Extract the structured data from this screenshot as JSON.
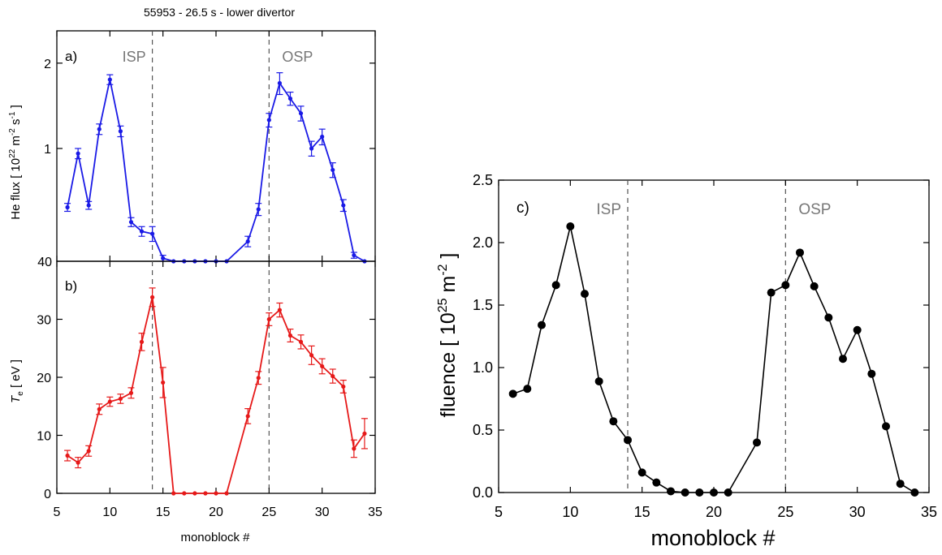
{
  "chart_data": [
    {
      "id": "a",
      "type": "line",
      "title": "55953 - 26.5 s - lower divertor",
      "panel_label": "a)",
      "ylabel_parts": [
        "He flux  [ 10",
        "22",
        " m",
        "-2",
        " s",
        "-1",
        " ]"
      ],
      "yscale": "log",
      "ylim": [
        0.4,
        2.6
      ],
      "yticks": [
        1,
        2
      ],
      "yticklabels": [
        "1",
        "2"
      ],
      "bottom_tick_label": "40",
      "xlim": [
        5,
        35
      ],
      "xticks": [
        5,
        10,
        15,
        20,
        25,
        30,
        35
      ],
      "grid": false,
      "legend": "none",
      "color": "#1a1ae6",
      "marker": "small-dot",
      "vlines": [
        {
          "x": 14,
          "label": "ISP"
        },
        {
          "x": 25,
          "label": "OSP"
        }
      ],
      "series": [
        {
          "x": [
            6,
            7,
            8,
            9,
            10,
            11,
            12,
            13,
            14,
            15,
            16,
            17,
            18,
            19,
            20,
            21,
            23,
            24,
            25,
            26,
            27,
            28,
            29,
            30,
            31,
            32,
            33,
            34
          ],
          "y": [
            0.62,
            0.96,
            0.63,
            1.17,
            1.75,
            1.15,
            0.55,
            0.51,
            0.5,
            0.41,
            0.4,
            0.4,
            0.4,
            0.4,
            0.4,
            0.4,
            0.47,
            0.61,
            1.26,
            1.7,
            1.5,
            1.33,
            1.0,
            1.1,
            0.84,
            0.63,
            0.42,
            0.4
          ],
          "err": [
            0.02,
            0.04,
            0.02,
            0.05,
            0.07,
            0.05,
            0.02,
            0.02,
            0.03,
            0.01,
            0,
            0,
            0,
            0,
            0,
            0,
            0.02,
            0.03,
            0.07,
            0.15,
            0.08,
            0.08,
            0.06,
            0.07,
            0.05,
            0.03,
            0.01,
            0
          ]
        }
      ]
    },
    {
      "id": "b",
      "type": "line",
      "panel_label": "b)",
      "ylabel_main": "T",
      "ylabel_sub": "e",
      "ylabel_rest": "  [ eV ]",
      "xlabel": "monoblock #",
      "ylim": [
        0,
        40
      ],
      "yticks": [
        0,
        10,
        20,
        30
      ],
      "xlim": [
        5,
        35
      ],
      "xticks": [
        5,
        10,
        15,
        20,
        25,
        30,
        35
      ],
      "grid": false,
      "legend": "none",
      "color": "#e61919",
      "marker": "small-dot",
      "vlines": [
        {
          "x": 14
        },
        {
          "x": 25
        }
      ],
      "series": [
        {
          "x": [
            6,
            7,
            8,
            9,
            10,
            11,
            12,
            13,
            14,
            15,
            16,
            17,
            18,
            19,
            20,
            21,
            23,
            24,
            25,
            26,
            27,
            28,
            29,
            30,
            31,
            32,
            33,
            34
          ],
          "y": [
            6.5,
            5.3,
            7.3,
            14.5,
            15.8,
            16.3,
            17.3,
            26.1,
            33.8,
            19.1,
            0,
            0,
            0,
            0,
            0,
            0,
            13.3,
            19.9,
            30.0,
            31.6,
            27.2,
            26.1,
            23.8,
            21.9,
            20.2,
            18.4,
            7.7,
            10.3
          ],
          "err": [
            0.9,
            0.9,
            0.9,
            0.9,
            0.8,
            0.8,
            0.9,
            1.5,
            1.6,
            2.6,
            0,
            0,
            0,
            0,
            0,
            0,
            1.3,
            1.1,
            1.1,
            1.2,
            1.1,
            1.2,
            1.6,
            1.3,
            1.2,
            1.1,
            1.5,
            2.6
          ]
        }
      ]
    },
    {
      "id": "c",
      "type": "line",
      "panel_label": "c)",
      "ylabel_main": "fluence  [ 10",
      "ylabel_sup1": "25",
      "ylabel_mid": " m",
      "ylabel_sup2": "-2",
      "ylabel_end": " ]",
      "xlabel": "monoblock #",
      "ylim": [
        0,
        2.5
      ],
      "yticks": [
        0,
        0.5,
        1.0,
        1.5,
        2.0,
        2.5
      ],
      "yticklabels": [
        "0.0",
        "0.5",
        "1.0",
        "1.5",
        "2.0",
        "2.5"
      ],
      "xlim": [
        5,
        35
      ],
      "xticks": [
        5,
        10,
        15,
        20,
        25,
        30,
        35
      ],
      "grid": false,
      "legend": "none",
      "color": "#000000",
      "marker": "filled-circle",
      "vlines": [
        {
          "x": 14,
          "label": "ISP"
        },
        {
          "x": 25,
          "label": "OSP"
        }
      ],
      "series": [
        {
          "x": [
            6,
            7,
            8,
            9,
            10,
            11,
            12,
            13,
            14,
            15,
            16,
            17,
            18,
            19,
            20,
            21,
            23,
            24,
            25,
            26,
            27,
            28,
            29,
            30,
            31,
            32,
            33,
            34
          ],
          "y": [
            0.79,
            0.83,
            1.34,
            1.66,
            2.13,
            1.59,
            0.89,
            0.57,
            0.42,
            0.16,
            0.08,
            0.01,
            0.0,
            0.0,
            0.0,
            0.0,
            0.4,
            1.6,
            1.66,
            1.92,
            1.65,
            1.4,
            1.07,
            1.3,
            0.95,
            0.53,
            0.07,
            0.0
          ]
        }
      ]
    }
  ]
}
